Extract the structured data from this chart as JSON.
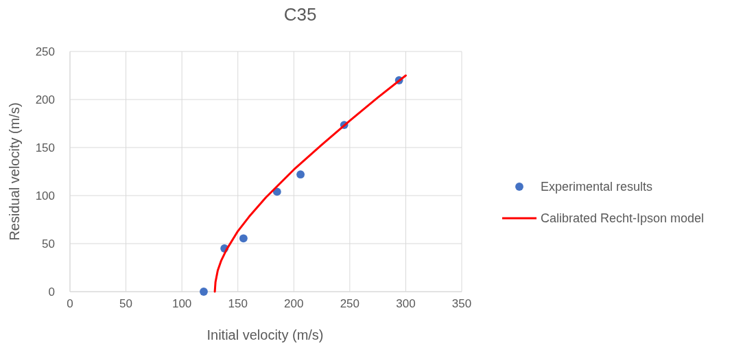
{
  "chart_data": {
    "type": "scatter",
    "title": "C35",
    "xlabel": "Initial velocity (m/s)",
    "ylabel": "Residual velocity (m/s)",
    "xlim": [
      0,
      350
    ],
    "xticks": [
      0,
      50,
      100,
      150,
      200,
      250,
      300,
      350
    ],
    "ylim": [
      0,
      250
    ],
    "yticks": [
      0,
      50,
      100,
      150,
      200,
      250
    ],
    "grid": true,
    "legend": "right",
    "series": [
      {
        "name": "Experimental results",
        "color": "#4472c4",
        "marker": "circle",
        "x": [
          119.5,
          138,
          155,
          185,
          206,
          245,
          294
        ],
        "values": [
          0,
          45,
          55.5,
          104,
          122,
          173.5,
          220
        ]
      },
      {
        "name": "Calibrated Recht-Ipson model",
        "type": "line",
        "color": "#ff0000",
        "marker": "none",
        "line_style": "solid",
        "x": [
          129.4,
          130,
          132,
          135,
          140,
          150,
          160,
          175,
          200,
          225,
          250,
          275,
          300
        ],
        "values": [
          0,
          10,
          22,
          32,
          44,
          63,
          78,
          98,
          127,
          153,
          178,
          202,
          225
        ]
      }
    ]
  }
}
